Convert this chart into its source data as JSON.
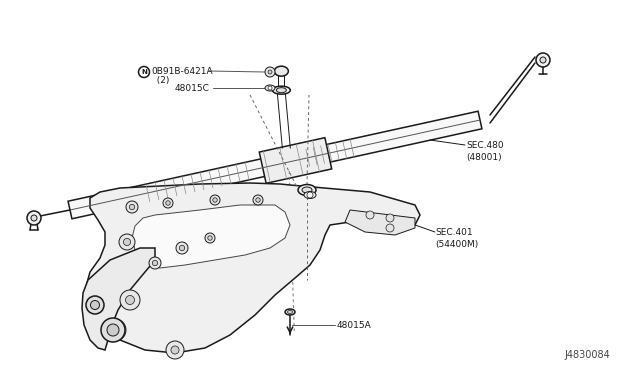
{
  "bg_color": "#ffffff",
  "line_color": "#1a1a1a",
  "label_color": "#111111",
  "diagram_id": "J4830084",
  "labels": {
    "bolt_label": "Ⓝ 0B91B-6421A",
    "bolt_label2": "  (2)",
    "washer": "48015C",
    "sec480_line1": "SEC.480",
    "sec480_line2": "(48001)",
    "sec401_line1": "SEC.401",
    "sec401_line2": "(54400M)",
    "bottom_bolt": "48015A"
  },
  "fig_width": 6.4,
  "fig_height": 3.72,
  "dpi": 100
}
